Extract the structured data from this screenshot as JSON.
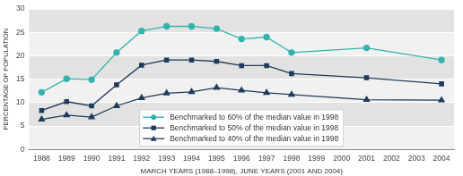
{
  "chart_data": {
    "type": "line",
    "x_label": "MARCH YEARS (1988–1998), JUNE YEARS (2001 AND 2004)",
    "y_label": "PERCENTAGE OF POPULATION",
    "categories": [
      "1988",
      "1989",
      "1990",
      "1991",
      "1992",
      "1993",
      "1994",
      "1995",
      "1996",
      "1997",
      "1998",
      "1999",
      "2000",
      "2001",
      "2002",
      "2003",
      "2004"
    ],
    "series": [
      {
        "name": "Benchmarked to 60% of the median value in 1998",
        "color": "#33b3ae",
        "marker": "circle",
        "values": [
          12.2,
          15.1,
          14.9,
          20.7,
          25.3,
          26.3,
          26.3,
          25.8,
          23.6,
          24.0,
          20.7,
          null,
          null,
          21.7,
          null,
          null,
          19.1
        ]
      },
      {
        "name": "Benchmarked to 50% of the median value in 1998",
        "color": "#1d3b5c",
        "marker": "square",
        "values": [
          8.3,
          10.2,
          9.3,
          13.8,
          18.0,
          19.1,
          19.1,
          18.8,
          17.9,
          17.9,
          16.2,
          null,
          null,
          15.3,
          null,
          null,
          14.0
        ]
      },
      {
        "name": "Benchmarked to 40% of the median value in 1998",
        "color": "#1d3b5c",
        "marker": "triangle",
        "values": [
          6.4,
          7.3,
          6.9,
          9.3,
          11.0,
          12.0,
          12.3,
          13.2,
          12.6,
          12.1,
          11.7,
          null,
          null,
          10.6,
          null,
          null,
          10.5
        ]
      }
    ],
    "ylim": [
      0,
      30
    ],
    "yticks": [
      0,
      5,
      10,
      15,
      20,
      25,
      30
    ],
    "grid": true,
    "legend": "bottom"
  }
}
